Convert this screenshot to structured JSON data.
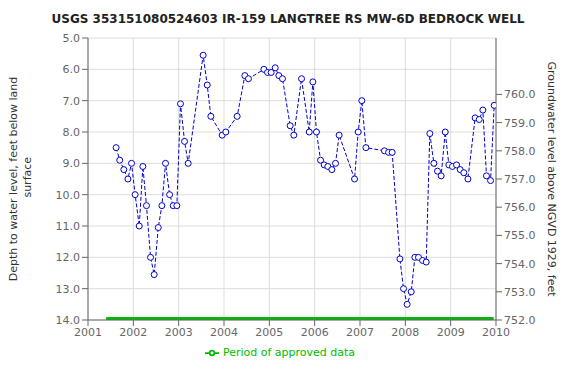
{
  "chart_data": {
    "type": "line",
    "title": "USGS 353151080524603 IR-159 LANGTREE RS MW-6D BEDROCK WELL",
    "y_label": "Depth to water level, feet below land\n surface",
    "y2_label": "Groundwater level above NGVD 1929, feet",
    "xlim": [
      2001.0,
      2010.0
    ],
    "xticks": [
      2001,
      2002,
      2003,
      2004,
      2005,
      2006,
      2007,
      2008,
      2009,
      2010
    ],
    "ylim": [
      14.0,
      5.0
    ],
    "yticks": [
      {
        "value": 5,
        "label": "5.0"
      },
      {
        "value": 6,
        "label": "6.0"
      },
      {
        "value": 7,
        "label": "7.0"
      },
      {
        "value": 8,
        "label": "8.0"
      },
      {
        "value": 9,
        "label": "9.0"
      },
      {
        "value": 10,
        "label": "10.0"
      },
      {
        "value": 11,
        "label": "11.0"
      },
      {
        "value": 12,
        "label": "12.0"
      },
      {
        "value": 13,
        "label": "13.0"
      },
      {
        "value": 14,
        "label": "14.0"
      }
    ],
    "y2lim": [
      752.0,
      762.0
    ],
    "y2ticks": [
      {
        "value": 752,
        "label": "752.0"
      },
      {
        "value": 753,
        "label": "753.0"
      },
      {
        "value": 754,
        "label": "754.0"
      },
      {
        "value": 755,
        "label": "755.0"
      },
      {
        "value": 756,
        "label": "756.0"
      },
      {
        "value": 757,
        "label": "757.0"
      },
      {
        "value": 758,
        "label": "758.0"
      },
      {
        "value": 759,
        "label": "759.0"
      },
      {
        "value": 760,
        "label": "760.0"
      }
    ],
    "grid": true,
    "x": [
      2001.62,
      2001.7,
      2001.79,
      2001.88,
      2001.96,
      2002.04,
      2002.13,
      2002.21,
      2002.29,
      2002.38,
      2002.46,
      2002.55,
      2002.63,
      2002.71,
      2002.8,
      2002.88,
      2002.96,
      2003.04,
      2003.13,
      2003.21,
      2003.54,
      2003.63,
      2003.71,
      2003.96,
      2004.04,
      2004.29,
      2004.46,
      2004.54,
      2004.88,
      2004.96,
      2005.04,
      2005.13,
      2005.21,
      2005.29,
      2005.46,
      2005.54,
      2005.71,
      2005.88,
      2005.96,
      2006.04,
      2006.13,
      2006.21,
      2006.29,
      2006.38,
      2006.46,
      2006.54,
      2006.88,
      2006.96,
      2007.04,
      2007.13,
      2007.54,
      2007.63,
      2007.71,
      2007.88,
      2007.96,
      2008.04,
      2008.13,
      2008.21,
      2008.29,
      2008.38,
      2008.46,
      2008.54,
      2008.63,
      2008.71,
      2008.79,
      2008.88,
      2008.96,
      2009.04,
      2009.13,
      2009.21,
      2009.29,
      2009.38,
      2009.54,
      2009.63,
      2009.71,
      2009.79,
      2009.88,
      2009.96
    ],
    "series": [
      {
        "color": "#0000cc",
        "line_style": "dashed",
        "marker": "circle",
        "values": [
          8.5,
          8.9,
          9.2,
          9.5,
          9.0,
          10.0,
          11.0,
          9.1,
          10.35,
          12.0,
          12.55,
          11.05,
          10.35,
          9.0,
          10.0,
          10.35,
          10.35,
          7.1,
          8.3,
          9.0,
          5.55,
          6.5,
          7.5,
          8.1,
          8.0,
          7.5,
          6.2,
          6.3,
          6.0,
          6.1,
          6.1,
          5.95,
          6.2,
          6.3,
          7.8,
          8.1,
          6.3,
          8.0,
          6.4,
          8.0,
          8.9,
          9.05,
          9.1,
          9.2,
          9.0,
          8.1,
          9.5,
          8.0,
          7.0,
          8.5,
          8.6,
          8.65,
          8.65,
          12.05,
          13.0,
          13.5,
          13.1,
          12.0,
          12.0,
          12.1,
          12.15,
          8.05,
          9.0,
          9.25,
          9.4,
          8.0,
          9.05,
          9.1,
          9.05,
          9.2,
          9.3,
          9.5,
          7.55,
          7.6,
          7.3,
          9.4,
          9.55,
          7.15
        ]
      },
      {
        "name": "Period of approved data",
        "color": "#00bb00",
        "line_style": "solid",
        "x": [
          2001.4,
          2009.95
        ],
        "values": [
          14.0,
          14.0
        ]
      }
    ]
  }
}
